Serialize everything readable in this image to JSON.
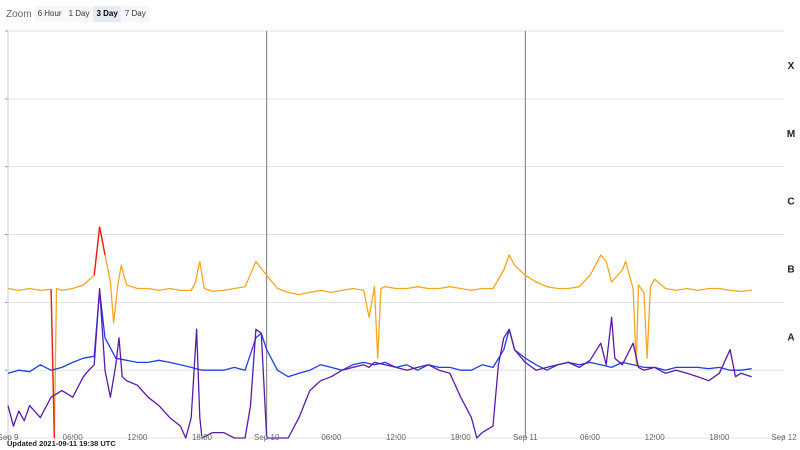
{
  "zoom": {
    "label": "Zoom",
    "options": [
      "6 Hour",
      "1 Day",
      "3 Day",
      "7 Day"
    ],
    "selected": "3 Day"
  },
  "updated_text": "Updated 2021-09-11 19:38 UTC",
  "chart_data": {
    "type": "line",
    "title": "",
    "xlabel": "",
    "ylabel": "",
    "x_unit": "hours since Sep 9 00:00 UTC",
    "x_range": [
      0,
      72
    ],
    "y_scale": "log",
    "y_range": [
      1e-09,
      0.001
    ],
    "flare_class_labels": [
      {
        "label": "A",
        "level": 1e-08
      },
      {
        "label": "B",
        "level": 1e-07
      },
      {
        "label": "C",
        "level": 1e-06
      },
      {
        "label": "M",
        "level": 1e-05
      },
      {
        "label": "X",
        "level": 0.0001
      }
    ],
    "x_ticks": [
      {
        "x": 0,
        "label": "Sep 9"
      },
      {
        "x": 6,
        "label": "06:00"
      },
      {
        "x": 12,
        "label": "12:00"
      },
      {
        "x": 18,
        "label": "18:00"
      },
      {
        "x": 24,
        "label": "Sep 10"
      },
      {
        "x": 30,
        "label": "06:00"
      },
      {
        "x": 36,
        "label": "12:00"
      },
      {
        "x": 42,
        "label": "18:00"
      },
      {
        "x": 48,
        "label": "Sep 11"
      },
      {
        "x": 54,
        "label": "06:00"
      },
      {
        "x": 60,
        "label": "12:00"
      },
      {
        "x": 66,
        "label": "18:00"
      },
      {
        "x": 72,
        "label": "Sep 12"
      }
    ],
    "day_boundaries": [
      24,
      48
    ],
    "grid": true,
    "legend": "none",
    "series": [
      {
        "color": "#f5a623",
        "flare_color": "#e8201a",
        "points": [
          [
            0,
            1.6e-07
          ],
          [
            1,
            1.5e-07
          ],
          [
            2,
            1.6e-07
          ],
          [
            3,
            1.5e-07
          ],
          [
            4,
            1.55e-07
          ],
          [
            4.3,
            9e-10
          ],
          [
            4.5,
            1.6e-07
          ],
          [
            5,
            1.5e-07
          ],
          [
            6,
            1.6e-07
          ],
          [
            7,
            1.8e-07
          ],
          [
            8,
            2.5e-07
          ],
          [
            8.5,
            1.3e-06
          ],
          [
            9,
            5e-07
          ],
          [
            9.5,
            2e-07
          ],
          [
            9.8,
            5e-08
          ],
          [
            10.2,
            1.8e-07
          ],
          [
            10.5,
            3.5e-07
          ],
          [
            11,
            1.8e-07
          ],
          [
            12,
            1.6e-07
          ],
          [
            13,
            1.6e-07
          ],
          [
            14,
            1.5e-07
          ],
          [
            15,
            1.6e-07
          ],
          [
            16,
            1.5e-07
          ],
          [
            17,
            1.5e-07
          ],
          [
            17.4,
            2e-07
          ],
          [
            17.8,
            4e-07
          ],
          [
            18.2,
            1.6e-07
          ],
          [
            19,
            1.45e-07
          ],
          [
            20,
            1.5e-07
          ],
          [
            21,
            1.6e-07
          ],
          [
            22,
            1.7e-07
          ],
          [
            23,
            4e-07
          ],
          [
            24,
            2.5e-07
          ],
          [
            25,
            1.6e-07
          ],
          [
            26,
            1.4e-07
          ],
          [
            27,
            1.3e-07
          ],
          [
            28,
            1.4e-07
          ],
          [
            29,
            1.5e-07
          ],
          [
            30,
            1.4e-07
          ],
          [
            31,
            1.5e-07
          ],
          [
            32,
            1.6e-07
          ],
          [
            33,
            1.5e-07
          ],
          [
            33.5,
            6e-08
          ],
          [
            34,
            1.7e-07
          ],
          [
            34.3,
            1.5e-08
          ],
          [
            34.6,
            1.6e-07
          ],
          [
            35,
            1.7e-07
          ],
          [
            36,
            1.6e-07
          ],
          [
            37,
            1.6e-07
          ],
          [
            38,
            1.7e-07
          ],
          [
            39,
            1.6e-07
          ],
          [
            40,
            1.6e-07
          ],
          [
            41,
            1.7e-07
          ],
          [
            42,
            1.6e-07
          ],
          [
            43,
            1.5e-07
          ],
          [
            44,
            1.6e-07
          ],
          [
            45,
            1.6e-07
          ],
          [
            46,
            3e-07
          ],
          [
            46.5,
            5e-07
          ],
          [
            47,
            3.5e-07
          ],
          [
            48,
            2.5e-07
          ],
          [
            49,
            2e-07
          ],
          [
            50,
            1.7e-07
          ],
          [
            51,
            1.6e-07
          ],
          [
            52,
            1.6e-07
          ],
          [
            53,
            1.7e-07
          ],
          [
            54,
            2.5e-07
          ],
          [
            54.5,
            3.5e-07
          ],
          [
            55,
            5e-07
          ],
          [
            55.5,
            4e-07
          ],
          [
            56,
            2e-07
          ],
          [
            57,
            3e-07
          ],
          [
            57.3,
            4e-07
          ],
          [
            58,
            1.6e-07
          ],
          [
            58.3,
            1.2e-08
          ],
          [
            58.5,
            1.8e-07
          ],
          [
            59,
            1.4e-07
          ],
          [
            59.3,
            1.5e-08
          ],
          [
            59.6,
            1.7e-07
          ],
          [
            60,
            2.2e-07
          ],
          [
            61,
            1.6e-07
          ],
          [
            62,
            1.5e-07
          ],
          [
            63,
            1.6e-07
          ],
          [
            64,
            1.5e-07
          ],
          [
            65,
            1.6e-07
          ],
          [
            66,
            1.6e-07
          ],
          [
            67,
            1.5e-07
          ],
          [
            68,
            1.45e-07
          ],
          [
            69,
            1.5e-07
          ]
        ]
      },
      {
        "color": "#1f3fe0",
        "points": [
          [
            0,
            9e-09
          ],
          [
            1,
            1e-08
          ],
          [
            2,
            9.5e-09
          ],
          [
            3,
            1.2e-08
          ],
          [
            4,
            1e-08
          ],
          [
            5,
            1.1e-08
          ],
          [
            6,
            1.3e-08
          ],
          [
            7,
            1.5e-08
          ],
          [
            8,
            1.6e-08
          ],
          [
            8.5,
            1.5e-07
          ],
          [
            9,
            3e-08
          ],
          [
            10,
            1.5e-08
          ],
          [
            11,
            1.4e-08
          ],
          [
            12,
            1.3e-08
          ],
          [
            13,
            1.3e-08
          ],
          [
            14,
            1.4e-08
          ],
          [
            15,
            1.3e-08
          ],
          [
            16,
            1.2e-08
          ],
          [
            17,
            1.1e-08
          ],
          [
            18,
            1e-08
          ],
          [
            19,
            1e-08
          ],
          [
            20,
            1e-08
          ],
          [
            21,
            1.1e-08
          ],
          [
            22,
            1e-08
          ],
          [
            23,
            3e-08
          ],
          [
            23.5,
            3.5e-08
          ],
          [
            24,
            2e-08
          ],
          [
            25,
            1e-08
          ],
          [
            26,
            8e-09
          ],
          [
            27,
            9e-09
          ],
          [
            28,
            1e-08
          ],
          [
            29,
            1.2e-08
          ],
          [
            30,
            1.1e-08
          ],
          [
            31,
            1e-08
          ],
          [
            32,
            1.2e-08
          ],
          [
            33,
            1.3e-08
          ],
          [
            34,
            1.2e-08
          ],
          [
            35,
            1.3e-08
          ],
          [
            36,
            1.1e-08
          ],
          [
            37,
            1.2e-08
          ],
          [
            38,
            1e-08
          ],
          [
            39,
            1.2e-08
          ],
          [
            40,
            1.1e-08
          ],
          [
            41,
            1.1e-08
          ],
          [
            42,
            1e-08
          ],
          [
            43,
            1e-08
          ],
          [
            44,
            1.2e-08
          ],
          [
            45,
            1.1e-08
          ],
          [
            46,
            2e-08
          ],
          [
            46.5,
            4e-08
          ],
          [
            47,
            2e-08
          ],
          [
            48,
            1.5e-08
          ],
          [
            49,
            1.2e-08
          ],
          [
            50,
            1e-08
          ],
          [
            51,
            1.2e-08
          ],
          [
            52,
            1.3e-08
          ],
          [
            53,
            1.2e-08
          ],
          [
            54,
            1.3e-08
          ],
          [
            55,
            1.2e-08
          ],
          [
            56,
            1.1e-08
          ],
          [
            57,
            1.3e-08
          ],
          [
            58,
            1.2e-08
          ],
          [
            59,
            1.1e-08
          ],
          [
            60,
            1.1e-08
          ],
          [
            61,
            1e-08
          ],
          [
            62,
            1.1e-08
          ],
          [
            63,
            1.1e-08
          ],
          [
            64,
            1.1e-08
          ],
          [
            65,
            1.05e-08
          ],
          [
            66,
            1.1e-08
          ],
          [
            67,
            1e-08
          ],
          [
            68,
            1e-08
          ],
          [
            69,
            1.05e-08
          ]
        ]
      },
      {
        "color": "#5a1aa8",
        "points": [
          [
            0,
            3e-09
          ],
          [
            0.5,
            1.5e-09
          ],
          [
            1,
            2.5e-09
          ],
          [
            1.5,
            1.8e-09
          ],
          [
            2,
            3e-09
          ],
          [
            3,
            2e-09
          ],
          [
            4,
            4e-09
          ],
          [
            5,
            5e-09
          ],
          [
            6,
            4e-09
          ],
          [
            7,
            8e-09
          ],
          [
            7.5,
            1e-08
          ],
          [
            8,
            1.2e-08
          ],
          [
            8.5,
            1.6e-07
          ],
          [
            9,
            1e-08
          ],
          [
            9.5,
            4e-09
          ],
          [
            10,
            1.2e-08
          ],
          [
            10.3,
            3e-08
          ],
          [
            10.6,
            8e-09
          ],
          [
            11,
            7e-09
          ],
          [
            12,
            6e-09
          ],
          [
            13,
            4e-09
          ],
          [
            14,
            3e-09
          ],
          [
            15,
            2e-09
          ],
          [
            16,
            1.5e-09
          ],
          [
            16.5,
            1e-09
          ],
          [
            17,
            2e-09
          ],
          [
            17.5,
            4e-08
          ],
          [
            17.8,
            2e-09
          ],
          [
            18,
            1e-09
          ],
          [
            19,
            1.2e-09
          ],
          [
            20,
            1.2e-09
          ],
          [
            21,
            1e-09
          ],
          [
            22,
            1e-09
          ],
          [
            22.5,
            3e-09
          ],
          [
            23,
            4e-08
          ],
          [
            23.5,
            3.5e-08
          ],
          [
            24,
            1e-09
          ],
          [
            25,
            1e-09
          ],
          [
            26,
            1e-09
          ],
          [
            27,
            2e-09
          ],
          [
            28,
            5e-09
          ],
          [
            29,
            7e-09
          ],
          [
            30,
            8e-09
          ],
          [
            31,
            1e-08
          ],
          [
            32,
            1.1e-08
          ],
          [
            33,
            1.2e-08
          ],
          [
            33.5,
            1.1e-08
          ],
          [
            34,
            1.3e-08
          ],
          [
            35,
            1.2e-08
          ],
          [
            36,
            1.1e-08
          ],
          [
            37,
            1e-08
          ],
          [
            38,
            1.1e-08
          ],
          [
            39,
            1.2e-08
          ],
          [
            40,
            1e-08
          ],
          [
            41,
            9e-09
          ],
          [
            42,
            4e-09
          ],
          [
            43,
            2e-09
          ],
          [
            43.5,
            1e-09
          ],
          [
            44,
            1.2e-09
          ],
          [
            45,
            1.5e-09
          ],
          [
            45.5,
            1.2e-08
          ],
          [
            46,
            3e-08
          ],
          [
            46.5,
            4e-08
          ],
          [
            47,
            2e-08
          ],
          [
            48,
            1.3e-08
          ],
          [
            49,
            1e-08
          ],
          [
            50,
            1.1e-08
          ],
          [
            51,
            1.2e-08
          ],
          [
            52,
            1.3e-08
          ],
          [
            53,
            1.1e-08
          ],
          [
            54,
            1.4e-08
          ],
          [
            55,
            2.5e-08
          ],
          [
            55.5,
            1.2e-08
          ],
          [
            56,
            6e-08
          ],
          [
            56.3,
            1.5e-08
          ],
          [
            57,
            1.2e-08
          ],
          [
            58,
            2.5e-08
          ],
          [
            58.5,
            1.1e-08
          ],
          [
            59,
            1e-08
          ],
          [
            60,
            1.1e-08
          ],
          [
            61,
            9e-09
          ],
          [
            62,
            1e-08
          ],
          [
            63,
            9e-09
          ],
          [
            64,
            8e-09
          ],
          [
            65,
            7e-09
          ],
          [
            66,
            9e-09
          ],
          [
            67,
            2e-08
          ],
          [
            67.5,
            8e-09
          ],
          [
            68,
            9e-09
          ],
          [
            69,
            8e-09
          ]
        ]
      }
    ]
  }
}
